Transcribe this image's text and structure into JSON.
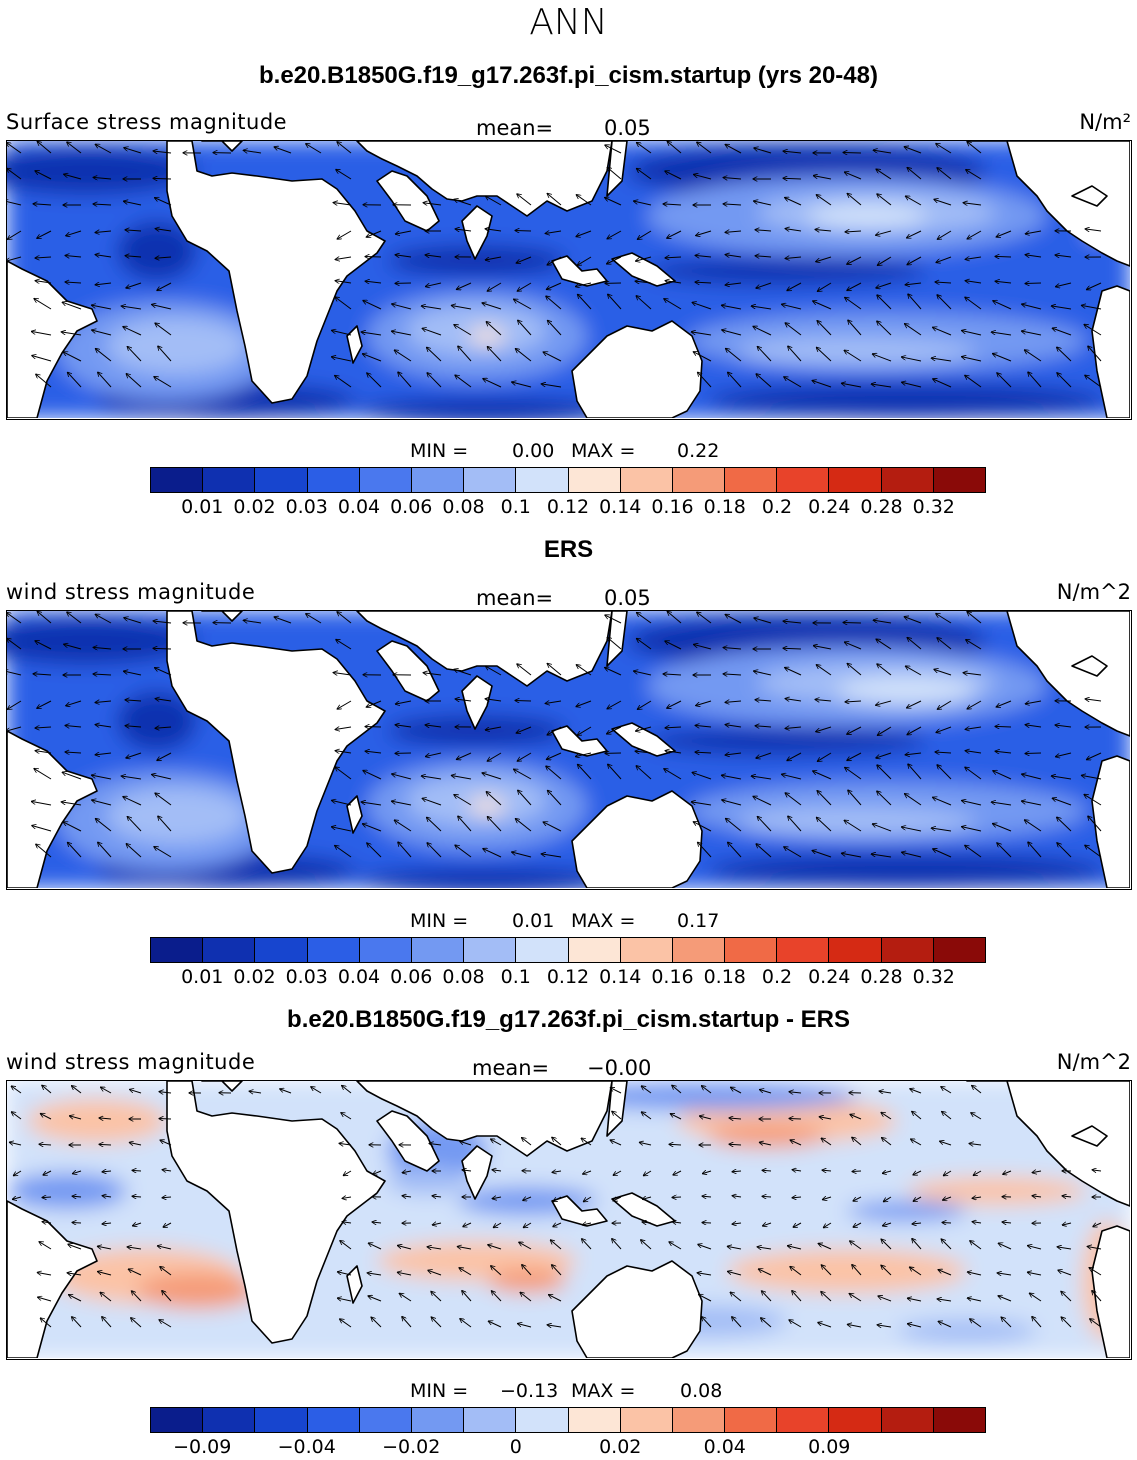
{
  "title": "ANN",
  "panels": [
    {
      "title": "b.e20.B1850G.f19_g17.263f.pi_cism.startup (yrs 20-48)",
      "variable": "Surface stress magnitude",
      "mean_label": "mean=",
      "mean_value": "0.05",
      "units": "N/m²",
      "min_label": "MIN =",
      "min_value": "0.00",
      "max_label": "MAX =",
      "max_value": "0.22",
      "colorbar": {
        "colors": [
          "#0a1d8c",
          "#0f30b0",
          "#1745cf",
          "#2b5ee6",
          "#4a78ee",
          "#7399f2",
          "#a3bdf6",
          "#d2e2fa",
          "#fde6d6",
          "#fbc3a6",
          "#f59b78",
          "#f06a46",
          "#e8432a",
          "#d52a14",
          "#b41d10",
          "#8a0a08"
        ],
        "ticks": [
          "0.01",
          "0.02",
          "0.03",
          "0.04",
          "0.06",
          "0.08",
          "0.1",
          "0.12",
          "0.14",
          "0.16",
          "0.18",
          "0.2",
          "0.24",
          "0.28",
          "0.32"
        ]
      }
    },
    {
      "title": "ERS",
      "variable": "wind stress magnitude",
      "mean_label": "mean=",
      "mean_value": "0.05",
      "units": "N/m^2",
      "min_label": "MIN =",
      "min_value": "0.01",
      "max_label": "MAX =",
      "max_value": "0.17",
      "colorbar": {
        "colors": [
          "#0a1d8c",
          "#0f30b0",
          "#1745cf",
          "#2b5ee6",
          "#4a78ee",
          "#7399f2",
          "#a3bdf6",
          "#d2e2fa",
          "#fde6d6",
          "#fbc3a6",
          "#f59b78",
          "#f06a46",
          "#e8432a",
          "#d52a14",
          "#b41d10",
          "#8a0a08"
        ],
        "ticks": [
          "0.01",
          "0.02",
          "0.03",
          "0.04",
          "0.06",
          "0.08",
          "0.1",
          "0.12",
          "0.14",
          "0.16",
          "0.18",
          "0.2",
          "0.24",
          "0.28",
          "0.32"
        ]
      }
    },
    {
      "title": "b.e20.B1850G.f19_g17.263f.pi_cism.startup - ERS",
      "variable": "wind stress magnitude",
      "mean_label": "mean=",
      "mean_value": "−0.00",
      "units": "N/m^2",
      "min_label": "MIN =",
      "min_value": "−0.13",
      "max_label": "MAX =",
      "max_value": "0.08",
      "colorbar": {
        "colors": [
          "#0a1d8c",
          "#0f30b0",
          "#1745cf",
          "#2b5ee6",
          "#4a78ee",
          "#7399f2",
          "#a3bdf6",
          "#d2e2fa",
          "#fde6d6",
          "#fbc3a6",
          "#f59b78",
          "#f06a46",
          "#e8432a",
          "#d52a14",
          "#b41d10",
          "#8a0a08"
        ],
        "ticks": [
          "−0.09",
          "−0.04",
          "−0.02",
          "0",
          "0.02",
          "0.04",
          "0.09"
        ]
      }
    }
  ]
}
